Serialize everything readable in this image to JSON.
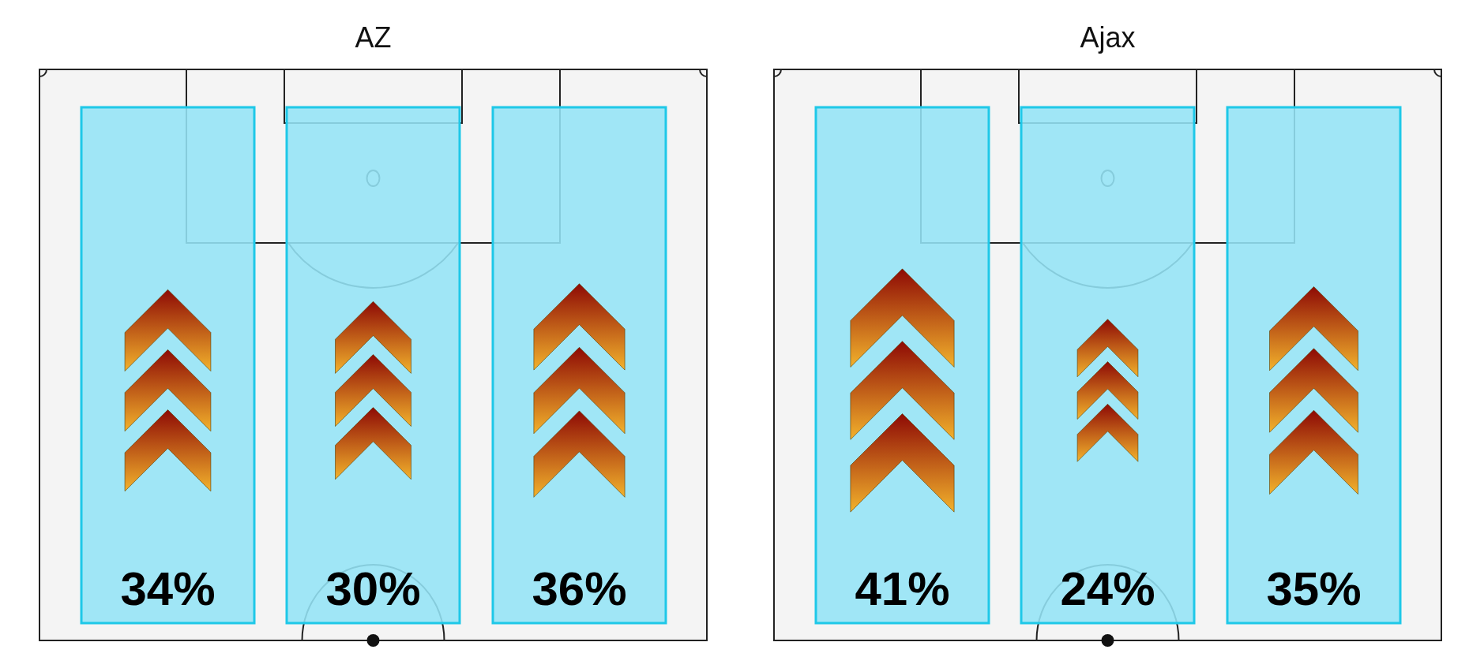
{
  "chart_data": [
    {
      "type": "other",
      "title": "AZ",
      "categories": [
        null,
        null,
        null
      ],
      "values": [
        34,
        30,
        36
      ],
      "value_labels": [
        "34%",
        "30%",
        "36%"
      ],
      "color": "#94e4f6"
    },
    {
      "type": "other",
      "title": "Ajax",
      "categories": [
        null,
        null,
        null
      ],
      "values": [
        41,
        24,
        35
      ],
      "value_labels": [
        "41%",
        "24%",
        "35%"
      ],
      "color": "#94e4f6"
    }
  ]
}
